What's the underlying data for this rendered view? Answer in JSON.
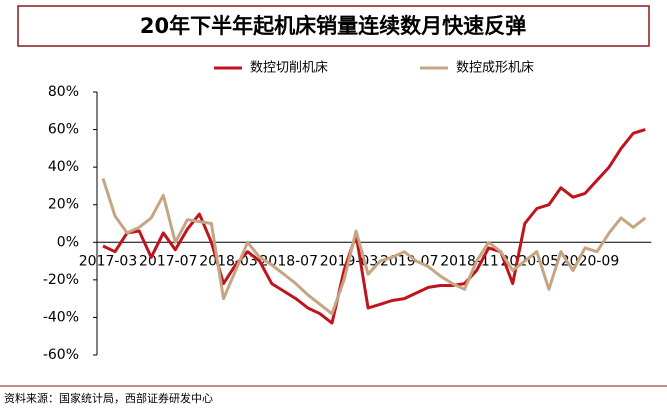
{
  "chart_data": {
    "type": "line",
    "title": "20年下半年起机床销量连续数月快速反弹",
    "categories": [
      "2017-03",
      null,
      null,
      null,
      null,
      "2017-07",
      null,
      null,
      null,
      null,
      "2018-03",
      null,
      null,
      null,
      null,
      "2018-07",
      null,
      null,
      null,
      null,
      "2019-03",
      null,
      null,
      null,
      null,
      "2019-07",
      null,
      null,
      null,
      null,
      "2018-11",
      null,
      null,
      null,
      null,
      "2020-05",
      null,
      null,
      null,
      null,
      "2020-09",
      null,
      null,
      null,
      null,
      null
    ],
    "series": [
      {
        "name": "数控切削机床",
        "color": "#c0141c",
        "values": [
          -2,
          -5,
          5,
          6,
          -8,
          5,
          -4,
          7,
          15,
          0,
          -22,
          -12,
          -5,
          -10,
          -22,
          -26,
          -30,
          -35,
          -38,
          -43,
          -15,
          4,
          -35,
          -33,
          -31,
          -30,
          -27,
          -24,
          -23,
          -23,
          -22,
          -15,
          -3,
          -5,
          -22,
          10,
          18,
          20,
          29,
          24,
          26,
          33,
          40,
          50,
          58,
          60
        ]
      },
      {
        "name": "数控成形机床",
        "color": "#c5a583",
        "values": [
          34,
          14,
          5,
          8,
          13,
          25,
          0,
          12,
          11,
          10,
          -30,
          -15,
          0,
          -8,
          -12,
          -17,
          -22,
          -28,
          -33,
          -38,
          -20,
          6,
          -17,
          -10,
          -8,
          -5,
          -10,
          -13,
          -18,
          -22,
          -25,
          -10,
          0,
          -5,
          -15,
          -10,
          -5,
          -25,
          -5,
          -15,
          -3,
          -5,
          5,
          13,
          8,
          13
        ]
      }
    ],
    "ylim": [
      -60,
      80
    ],
    "yticks": [
      {
        "value": -60,
        "label": "-60%"
      },
      {
        "value": -40,
        "label": "-40%"
      },
      {
        "value": -20,
        "label": "-20%"
      },
      {
        "value": 0,
        "label": "0%"
      },
      {
        "value": 20,
        "label": "20%"
      },
      {
        "value": 40,
        "label": "40%"
      },
      {
        "value": 60,
        "label": "60%"
      },
      {
        "value": 80,
        "label": "80%"
      }
    ],
    "source": "资料来源：国家统计局，西部证券研发中心"
  }
}
